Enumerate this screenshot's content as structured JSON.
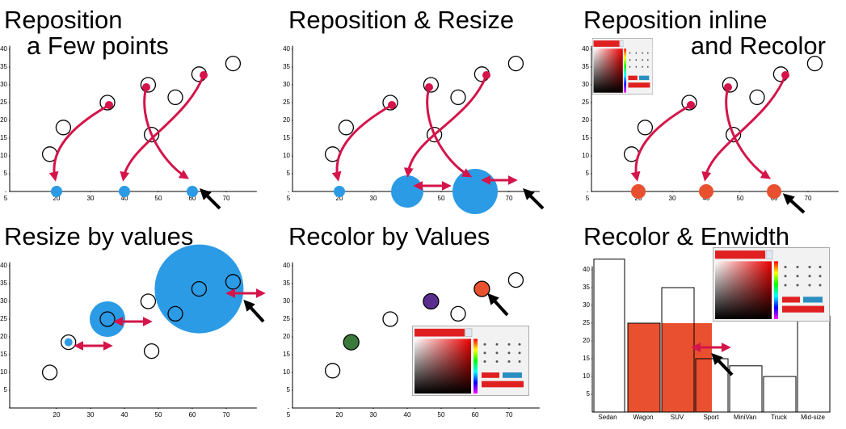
{
  "chart_data": [
    {
      "type": "scatter",
      "title": [
        "Reposition",
        "a Few points"
      ],
      "xlim": [
        6,
        79
      ],
      "ylim": [
        0,
        41
      ],
      "xticks": [
        5,
        20,
        30,
        40,
        50,
        60,
        70
      ],
      "yticks": [
        5,
        10,
        15,
        20,
        25,
        30,
        35,
        40
      ],
      "series": [
        {
          "color": "#ffffff",
          "x": [
            18,
            22,
            35,
            47,
            48,
            55,
            62,
            72
          ],
          "y": [
            10.5,
            18,
            25,
            30,
            16,
            26.5,
            33,
            36
          ]
        },
        {
          "color": "#2b9be6",
          "x": [
            20,
            40,
            60
          ],
          "y": [
            0,
            0,
            0
          ]
        }
      ]
    },
    {
      "type": "scatter",
      "title": [
        "Reposition & Resize"
      ],
      "xlim": [
        6,
        79
      ],
      "ylim": [
        0,
        41
      ],
      "xticks": [
        5,
        20,
        30,
        40,
        50,
        60,
        70
      ],
      "yticks": [
        5,
        10,
        15,
        20,
        25,
        30,
        35,
        40
      ],
      "series": [
        {
          "color": "#ffffff",
          "x": [
            18,
            22,
            35,
            47,
            48,
            55,
            62,
            72
          ],
          "y": [
            10.5,
            18,
            25,
            30,
            16,
            26.5,
            33,
            36
          ]
        },
        {
          "color": "#2b9be6",
          "x": [
            20,
            40,
            60
          ],
          "y": [
            0,
            0,
            0
          ]
        }
      ]
    },
    {
      "type": "scatter",
      "title": [
        "Reposition inline",
        "and Recolor"
      ],
      "xlim": [
        6,
        79
      ],
      "ylim": [
        0,
        41
      ],
      "xticks": [
        5,
        20,
        30,
        40,
        50,
        60,
        70
      ],
      "yticks": [
        5,
        10,
        15,
        20,
        25,
        30,
        35,
        40
      ],
      "series": [
        {
          "color": "#ffffff",
          "x": [
            18,
            22,
            35,
            47,
            48,
            55,
            62,
            72
          ],
          "y": [
            10.5,
            18,
            25,
            30,
            16,
            26.5,
            33,
            36
          ]
        },
        {
          "color": "#e8502f",
          "x": [
            20,
            40,
            60
          ],
          "y": [
            0,
            0,
            0
          ]
        }
      ]
    },
    {
      "type": "scatter",
      "title": [
        "Resize by values"
      ],
      "xlim": [
        6,
        79
      ],
      "ylim": [
        0,
        41
      ],
      "xticks": [
        20,
        30,
        40,
        50,
        60,
        70
      ],
      "yticks": [
        5,
        10,
        15,
        20,
        25,
        30,
        35,
        40
      ],
      "series": [
        {
          "color": "#2b9be6",
          "x": [
            23.5,
            35,
            62
          ],
          "y": [
            18.5,
            25,
            33.5
          ]
        },
        {
          "color": "#ffffff",
          "x": [
            18,
            23.5,
            35,
            47,
            48,
            55,
            62,
            72
          ],
          "y": [
            10,
            18.5,
            25,
            30,
            16,
            26.5,
            33.5,
            35.5
          ]
        }
      ]
    },
    {
      "type": "scatter",
      "title": [
        "Recolor by Values"
      ],
      "xlim": [
        6,
        79
      ],
      "ylim": [
        0,
        41
      ],
      "xticks": [
        5,
        20,
        30,
        40,
        50,
        60,
        70
      ],
      "yticks": [
        5,
        10,
        15,
        20,
        25,
        30,
        35,
        40
      ],
      "series": [
        {
          "color": "#ffffff",
          "x": [
            18,
            35,
            55,
            72
          ],
          "y": [
            10.5,
            25,
            26.5,
            36
          ]
        },
        {
          "color": "#3c7a3c",
          "x": [
            23.5
          ],
          "y": [
            18.5
          ]
        },
        {
          "color": "#5b2d8f",
          "x": [
            47
          ],
          "y": [
            30
          ]
        },
        {
          "color": "#e8502f",
          "x": [
            62
          ],
          "y": [
            33.5
          ]
        }
      ]
    },
    {
      "type": "bar",
      "title": [
        "Recolor & Enwidth"
      ],
      "ylim": [
        0,
        41
      ],
      "yticks": [
        5,
        10,
        15,
        20,
        25,
        30,
        35,
        40
      ],
      "categories": [
        "Sedan",
        "Wagon",
        "SUV",
        "Sport",
        "MiniVan",
        "Truck",
        "Mid-size"
      ],
      "series": [
        {
          "color": "#e8502f",
          "values": [
            null,
            25,
            25,
            null,
            null,
            null,
            null
          ]
        },
        {
          "color": "none",
          "values": [
            43,
            25,
            35,
            15,
            13,
            10,
            27
          ]
        }
      ]
    }
  ]
}
